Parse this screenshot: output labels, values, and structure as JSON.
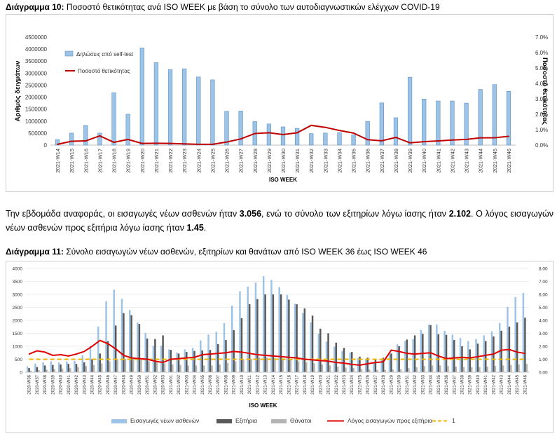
{
  "chart10": {
    "label": "Διάγραμμα 10:",
    "caption": "Ποσοστό θετικότητας ανά ISO WEEK με βάση το σύνολο των αυτοδιαγνωστικών ελέγχων COVID-19"
  },
  "paragraph": {
    "t1": "Την εβδομάδα αναφοράς, οι εισαγωγές νέων ασθενών ήταν ",
    "v1": "3.056",
    "t2": ", ενώ το σύνολο των εξιτηρίων λόγω ίασης ήταν ",
    "v2": "2.102",
    "t3": ". Ο λόγος εισαγωγών νέων ασθενών προς εξιτήρια λόγω ίασης ήταν ",
    "v3": "1.45",
    "t4": "."
  },
  "chart11": {
    "label": "Διάγραμμα 11:",
    "caption": "Σύνολο εισαγωγών νέων ασθενών, εξιτηρίων και θανάτων από ISO WEEK 36 έως ISO WEEK 46"
  },
  "chart_data": [
    {
      "type": "bar",
      "title": "",
      "xlabel": "ISO WEEK",
      "ylabel": "Αριθμός δειγμάτων",
      "y2label": "Ποσοστό θετικότητας",
      "ylim": [
        0,
        4500000
      ],
      "y2lim": [
        0,
        0.07
      ],
      "yticks": [
        "0",
        "500000",
        "1000000",
        "1500000",
        "2000000",
        "2500000",
        "3000000",
        "3500000",
        "4000000",
        "4500000"
      ],
      "y2ticks": [
        "0.0%",
        "1.0%",
        "2.0%",
        "3.0%",
        "4.0%",
        "5.0%",
        "6.0%",
        "7.0%"
      ],
      "legend_position": "top-left",
      "colors": {
        "bars": "#9dc3e6",
        "bar_edge": "#5b8fc4",
        "line": "#c00000"
      },
      "categories": [
        "2021-W14",
        "2021-W15",
        "2021-W16",
        "2021-W17",
        "2021-W18",
        "2021-W19",
        "2021-W20",
        "2021-W21",
        "2021-W22",
        "2021-W23",
        "2021-W24",
        "2021-W25",
        "2021-W26",
        "2021-W27",
        "2021-W28",
        "2021-W29",
        "2021-W30",
        "2021-W31",
        "2021-W32",
        "2021-W33",
        "2021-W34",
        "2021-W35",
        "2021-W36",
        "2021-W37",
        "2021-W38",
        "2021-W39",
        "2021-W40",
        "2021-W41",
        "2021-W42",
        "2021-W43",
        "2021-W44",
        "2021-W45",
        "2021-W46"
      ],
      "series": [
        {
          "name": "Δηλώσεις από self-test",
          "kind": "bar",
          "axis": "left",
          "values": [
            230000,
            500000,
            820000,
            500000,
            2180000,
            1290000,
            4050000,
            3440000,
            3150000,
            3180000,
            2840000,
            2720000,
            1410000,
            1420000,
            980000,
            880000,
            760000,
            700000,
            480000,
            500000,
            520000,
            430000,
            990000,
            1760000,
            1140000,
            2830000,
            1920000,
            1840000,
            1840000,
            1750000,
            2320000,
            2520000,
            2240000
          ]
        },
        {
          "name": "Ποσοστό θετικότητας",
          "kind": "line",
          "axis": "right",
          "values": [
            0.0005,
            0.0025,
            0.0027,
            0.006,
            0.0018,
            0.0037,
            0.0011,
            0.0012,
            0.0011,
            0.0008,
            0.0005,
            0.0005,
            0.002,
            0.004,
            0.0075,
            0.008,
            0.0068,
            0.008,
            0.0128,
            0.0115,
            0.0095,
            0.0078,
            0.0035,
            0.0028,
            0.005,
            0.0015,
            0.0022,
            0.0027,
            0.0033,
            0.0037,
            0.0047,
            0.0048,
            0.0057
          ]
        }
      ]
    },
    {
      "type": "bar",
      "title": "",
      "xlabel": "ISO WEEK",
      "ylim": [
        0,
        4000
      ],
      "y2lim": [
        0,
        8
      ],
      "yticks": [
        "0",
        "500",
        "1000",
        "1500",
        "2000",
        "2500",
        "3000",
        "3500",
        "4000"
      ],
      "y2ticks": [
        "0.00",
        "1.00",
        "2.00",
        "3.00",
        "4.00",
        "5.00",
        "6.00",
        "7.00",
        "8.00"
      ],
      "legend_position": "bottom",
      "colors": {
        "admissions": "#9dc3e6",
        "discharges": "#595959",
        "deaths": "#b4b4b4",
        "ratio": "#e00000",
        "one": "#f0b400"
      },
      "categories": [
        "2020-W36",
        "2020-W37",
        "2020-W38",
        "2020-W39",
        "2020-W40",
        "2020-W41",
        "2020-W42",
        "2020-W43",
        "2020-W44",
        "2020-W45",
        "2020-W46",
        "2020-W47",
        "2020-W48",
        "2020-W49",
        "2020-W50",
        "2020-W51",
        "2020-W52",
        "2020-W53",
        "2021-W01",
        "2021-W02",
        "2021-W03",
        "2021-W04",
        "2021-W05",
        "2021-W06",
        "2021-W07",
        "2021-W08",
        "2021-W09",
        "2021-W10",
        "2021-W11",
        "2021-W12",
        "2021-W13",
        "2021-W14",
        "2021-W15",
        "2021-W16",
        "2021-W17",
        "2021-W18",
        "2021-W19",
        "2021-W20",
        "2021-W21",
        "2021-W22",
        "2021-W23",
        "2021-W24",
        "2021-W25",
        "2021-W26",
        "2021-W27",
        "2021-W28",
        "2021-W29",
        "2021-W30",
        "2021-W31",
        "2021-W32",
        "2021-W33",
        "2021-W34",
        "2021-W35",
        "2021-W36",
        "2021-W37",
        "2021-W38",
        "2021-W39",
        "2021-W40",
        "2021-W41",
        "2021-W42",
        "2021-W43",
        "2021-W44",
        "2021-W45",
        "2021-W46"
      ],
      "series": [
        {
          "name": "Εισαγωγές νέων ασθενών",
          "kind": "bar",
          "axis": "left",
          "values": [
            220,
            330,
            380,
            420,
            380,
            420,
            440,
            650,
            1020,
            1760,
            2740,
            3180,
            2830,
            2400,
            1920,
            1520,
            1020,
            1020,
            880,
            760,
            880,
            940,
            1230,
            1450,
            1560,
            1900,
            2570,
            3120,
            3300,
            3460,
            3700,
            3560,
            3280,
            2980,
            2640,
            2280,
            1920,
            1480,
            1180,
            980,
            820,
            760,
            540,
            480,
            400,
            520,
            720,
            1080,
            1200,
            1280,
            1630,
            1840,
            1840,
            1600,
            1450,
            1320,
            1200,
            1280,
            1420,
            1580,
            1900,
            2520,
            2900,
            3056
          ]
        },
        {
          "name": "Εξιτήρια",
          "kind": "bar",
          "axis": "left",
          "values": [
            160,
            200,
            260,
            280,
            300,
            320,
            320,
            380,
            500,
            720,
            1200,
            1800,
            2280,
            2200,
            1860,
            1300,
            1280,
            1420,
            860,
            720,
            780,
            820,
            840,
            860,
            1080,
            1240,
            1620,
            2080,
            2620,
            2820,
            3000,
            3000,
            3000,
            2800,
            2620,
            2460,
            2180,
            1680,
            1500,
            1140,
            940,
            780,
            600,
            560,
            500,
            560,
            720,
            1000,
            1260,
            1420,
            1480,
            1820,
            1460,
            1440,
            1240,
            1000,
            880,
            1100,
            1200,
            1380,
            1600,
            1760,
            1920,
            2102
          ]
        },
        {
          "name": "Θάνατοι",
          "kind": "bar",
          "axis": "left",
          "values": [
            60,
            80,
            100,
            120,
            140,
            160,
            200,
            240,
            280,
            340,
            420,
            480,
            520,
            520,
            480,
            420,
            380,
            340,
            300,
            280,
            260,
            260,
            260,
            260,
            300,
            360,
            420,
            480,
            520,
            560,
            560,
            560,
            520,
            480,
            420,
            380,
            340,
            300,
            260,
            220,
            180,
            160,
            120,
            100,
            90,
            90,
            100,
            120,
            160,
            200,
            240,
            260,
            260,
            240,
            220,
            200,
            200,
            200,
            220,
            240,
            260,
            280,
            300,
            320
          ]
        },
        {
          "name": "Λόγος εισαγωγών προς εξιτήρια",
          "kind": "line",
          "axis": "right",
          "values": [
            1.4,
            1.65,
            1.55,
            1.3,
            1.35,
            1.25,
            1.4,
            1.6,
            2.0,
            2.45,
            2.2,
            1.8,
            1.3,
            1.1,
            1.05,
            1.0,
            0.85,
            0.75,
            1.0,
            1.05,
            1.1,
            1.15,
            1.35,
            1.4,
            1.45,
            1.5,
            1.6,
            1.55,
            1.45,
            1.35,
            1.3,
            1.25,
            1.2,
            1.15,
            1.1,
            1.0,
            0.95,
            0.9,
            0.85,
            0.75,
            0.7,
            0.6,
            0.55,
            0.65,
            0.75,
            0.8,
            1.7,
            1.6,
            1.45,
            1.4,
            1.45,
            1.5,
            1.25,
            1.05,
            1.1,
            1.15,
            1.1,
            1.2,
            1.3,
            1.4,
            1.7,
            1.75,
            1.55,
            1.45
          ]
        },
        {
          "name": "1",
          "kind": "line",
          "axis": "right",
          "dashed": true,
          "values": [
            1,
            1,
            1,
            1,
            1,
            1,
            1,
            1,
            1,
            1,
            1,
            1,
            1,
            1,
            1,
            1,
            1,
            1,
            1,
            1,
            1,
            1,
            1,
            1,
            1,
            1,
            1,
            1,
            1,
            1,
            1,
            1,
            1,
            1,
            1,
            1,
            1,
            1,
            1,
            1,
            1,
            1,
            1,
            1,
            1,
            1,
            1,
            1,
            1,
            1,
            1,
            1,
            1,
            1,
            1,
            1,
            1,
            1,
            1,
            1,
            1,
            1,
            1,
            1
          ]
        }
      ]
    }
  ]
}
